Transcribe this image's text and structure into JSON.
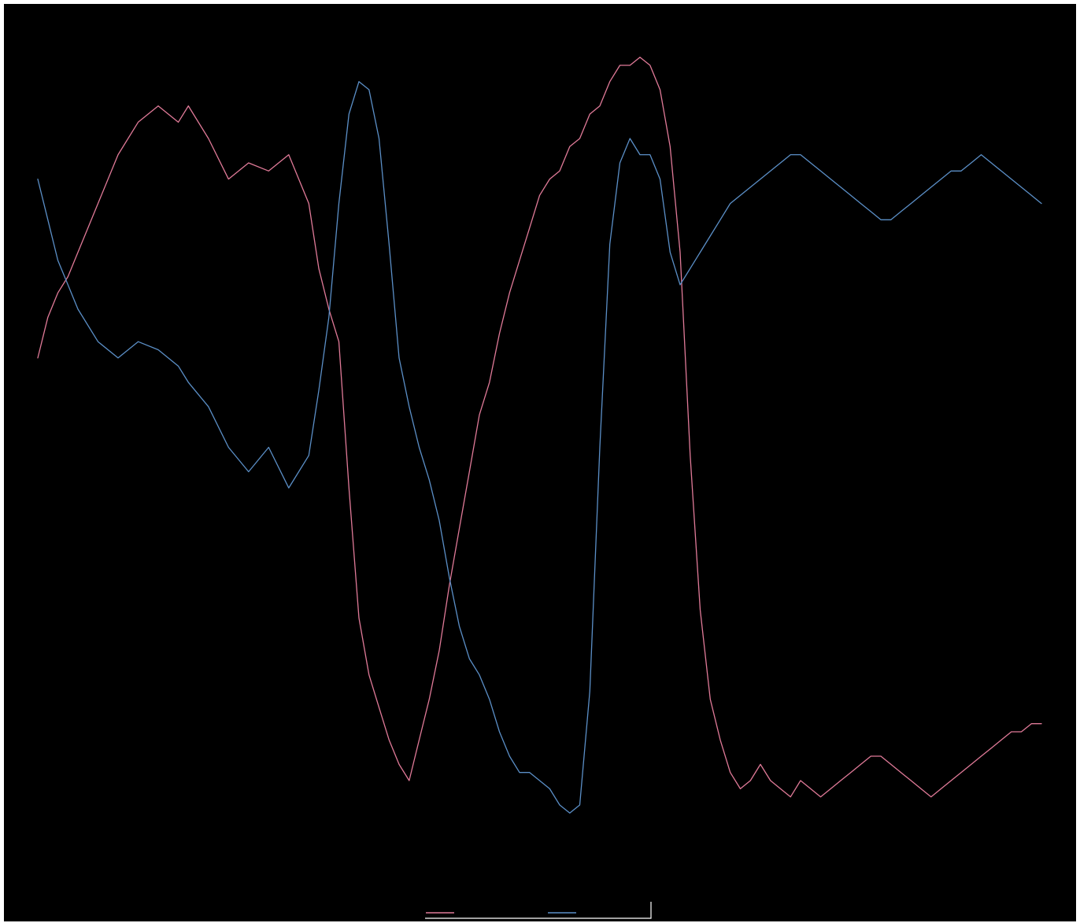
{
  "chart_data": {
    "type": "line",
    "title": "",
    "xlabel": "",
    "ylabel": "",
    "grid": false,
    "legend_position": "bottom-center",
    "xlim": [
      0,
      100
    ],
    "ylim": [
      0,
      100
    ],
    "x": [
      0,
      1,
      2,
      3,
      4,
      6,
      8,
      10,
      12,
      14,
      15,
      17,
      19,
      21,
      23,
      25,
      27,
      28,
      29,
      30,
      31,
      32,
      33,
      34,
      35,
      36,
      37,
      38,
      39,
      40,
      41,
      42,
      43,
      44,
      45,
      46,
      47,
      48,
      49,
      50,
      51,
      52,
      53,
      54,
      55,
      56,
      57,
      58,
      59,
      60,
      61,
      62,
      63,
      64,
      65,
      66,
      67,
      68,
      69,
      70,
      71,
      72,
      73,
      74,
      75,
      76,
      77,
      78,
      79,
      80,
      81,
      82,
      83,
      84,
      85,
      86,
      87,
      88,
      89,
      90,
      91,
      92,
      93,
      94,
      95,
      96,
      97,
      98,
      99,
      100
    ],
    "series": [
      {
        "color": "#e07a98",
        "values": [
          61,
          66,
          69,
          71,
          74,
          80,
          86,
          90,
          92,
          90,
          92,
          88,
          83,
          85,
          84,
          86,
          80,
          72,
          67,
          63,
          45,
          29,
          22,
          18,
          14,
          11,
          9,
          14,
          19,
          25,
          33,
          40,
          47,
          54,
          58,
          64,
          69,
          73,
          77,
          81,
          83,
          84,
          87,
          88,
          91,
          92,
          95,
          97,
          97,
          98,
          97,
          94,
          87,
          74,
          49,
          30,
          19,
          14,
          10,
          8,
          9,
          11,
          9,
          8,
          7,
          9,
          8,
          7,
          8,
          9,
          10,
          11,
          12,
          12,
          11,
          10,
          9,
          8,
          7,
          8,
          9,
          10,
          11,
          12,
          13,
          14,
          15,
          15,
          16,
          16
        ]
      },
      {
        "color": "#5b8fc7",
        "values": [
          83,
          78,
          73,
          70,
          67,
          63,
          61,
          63,
          62,
          60,
          58,
          55,
          50,
          47,
          50,
          45,
          49,
          57,
          66,
          80,
          91,
          95,
          94,
          88,
          75,
          61,
          55,
          50,
          46,
          41,
          34,
          28,
          24,
          22,
          19,
          15,
          12,
          10,
          10,
          9,
          8,
          6,
          5,
          6,
          20,
          50,
          75,
          85,
          88,
          86,
          86,
          83,
          74,
          70,
          72,
          74,
          76,
          78,
          80,
          81,
          82,
          83,
          84,
          85,
          86,
          86,
          85,
          84,
          83,
          82,
          81,
          80,
          79,
          78,
          78,
          79,
          80,
          81,
          82,
          83,
          84,
          84,
          85,
          86,
          85,
          84,
          83,
          82,
          81,
          80
        ]
      }
    ]
  }
}
